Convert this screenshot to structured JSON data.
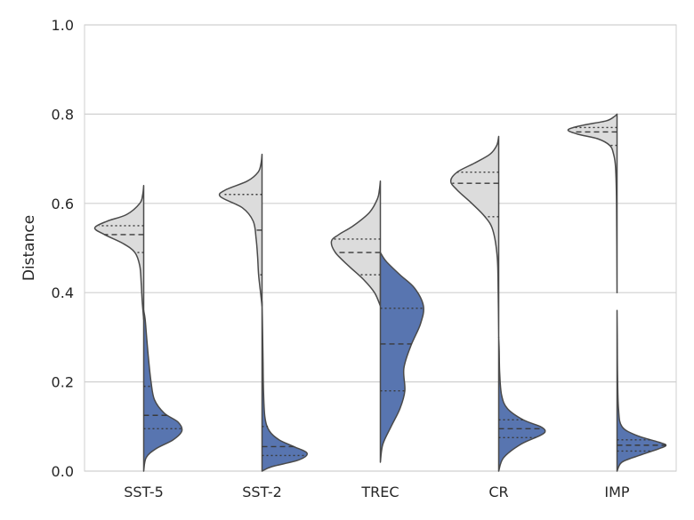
{
  "chart_data": {
    "type": "split-violin",
    "ylabel": "Distance",
    "ylim": [
      0.0,
      1.0
    ],
    "yticks": [
      "0.0",
      "0.2",
      "0.4",
      "0.6",
      "0.8",
      "1.0"
    ],
    "grid": "horizontal",
    "categories": [
      "SST-5",
      "SST-2",
      "TREC",
      "CR",
      "IMP"
    ],
    "colors": {
      "left": "#dcdcdc",
      "right": "#5875b0",
      "outline": "#4a4a4a",
      "grid": "#d0d0d0"
    },
    "series": [
      {
        "side": "left",
        "violins": [
          {
            "category": "SST-5",
            "min": 0.34,
            "max": 0.64,
            "q1": 0.49,
            "median": 0.53,
            "q3": 0.55,
            "shape": [
              [
                0.34,
                0.0
              ],
              [
                0.38,
                0.03
              ],
              [
                0.42,
                0.05
              ],
              [
                0.46,
                0.08
              ],
              [
                0.49,
                0.18
              ],
              [
                0.51,
                0.42
              ],
              [
                0.53,
                0.8
              ],
              [
                0.545,
                1.0
              ],
              [
                0.56,
                0.75
              ],
              [
                0.575,
                0.35
              ],
              [
                0.6,
                0.08
              ],
              [
                0.62,
                0.02
              ],
              [
                0.64,
                0.0
              ]
            ]
          },
          {
            "category": "SST-2",
            "min": 0.37,
            "max": 0.71,
            "q1": 0.44,
            "median": 0.54,
            "q3": 0.62,
            "shape": [
              [
                0.37,
                0.0
              ],
              [
                0.4,
                0.03
              ],
              [
                0.44,
                0.07
              ],
              [
                0.48,
                0.09
              ],
              [
                0.52,
                0.12
              ],
              [
                0.56,
                0.18
              ],
              [
                0.59,
                0.4
              ],
              [
                0.615,
                0.85
              ],
              [
                0.63,
                0.75
              ],
              [
                0.65,
                0.3
              ],
              [
                0.67,
                0.08
              ],
              [
                0.69,
                0.02
              ],
              [
                0.71,
                0.0
              ]
            ]
          },
          {
            "category": "TREC",
            "min": 0.37,
            "max": 0.65,
            "q1": 0.44,
            "median": 0.49,
            "q3": 0.52,
            "shape": [
              [
                0.37,
                0.0
              ],
              [
                0.4,
                0.12
              ],
              [
                0.43,
                0.35
              ],
              [
                0.46,
                0.65
              ],
              [
                0.49,
                0.92
              ],
              [
                0.515,
                1.0
              ],
              [
                0.53,
                0.85
              ],
              [
                0.55,
                0.55
              ],
              [
                0.58,
                0.22
              ],
              [
                0.61,
                0.06
              ],
              [
                0.63,
                0.02
              ],
              [
                0.65,
                0.0
              ]
            ]
          },
          {
            "category": "CR",
            "min": 0.3,
            "max": 0.75,
            "q1": 0.57,
            "median": 0.645,
            "q3": 0.67,
            "shape": [
              [
                0.3,
                0.0
              ],
              [
                0.4,
                0.01
              ],
              [
                0.48,
                0.03
              ],
              [
                0.54,
                0.12
              ],
              [
                0.57,
                0.28
              ],
              [
                0.6,
                0.55
              ],
              [
                0.63,
                0.85
              ],
              [
                0.65,
                0.98
              ],
              [
                0.67,
                0.85
              ],
              [
                0.69,
                0.5
              ],
              [
                0.71,
                0.18
              ],
              [
                0.73,
                0.04
              ],
              [
                0.75,
                0.0
              ]
            ]
          },
          {
            "category": "IMP",
            "min": 0.4,
            "max": 0.8,
            "q1": 0.73,
            "median": 0.76,
            "q3": 0.77,
            "shape": [
              [
                0.4,
                0.0
              ],
              [
                0.6,
                0.01
              ],
              [
                0.68,
                0.03
              ],
              [
                0.71,
                0.07
              ],
              [
                0.73,
                0.15
              ],
              [
                0.745,
                0.4
              ],
              [
                0.755,
                0.8
              ],
              [
                0.765,
                1.0
              ],
              [
                0.775,
                0.7
              ],
              [
                0.785,
                0.22
              ],
              [
                0.795,
                0.05
              ],
              [
                0.8,
                0.0
              ]
            ]
          }
        ]
      },
      {
        "side": "right",
        "violins": [
          {
            "category": "SST-5",
            "min": 0.0,
            "max": 0.36,
            "q1": 0.095,
            "median": 0.125,
            "q3": 0.19,
            "shape": [
              [
                0.0,
                0.0
              ],
              [
                0.03,
                0.05
              ],
              [
                0.05,
                0.25
              ],
              [
                0.07,
                0.6
              ],
              [
                0.09,
                0.78
              ],
              [
                0.11,
                0.7
              ],
              [
                0.13,
                0.42
              ],
              [
                0.16,
                0.22
              ],
              [
                0.2,
                0.15
              ],
              [
                0.25,
                0.1
              ],
              [
                0.3,
                0.06
              ],
              [
                0.34,
                0.03
              ],
              [
                0.36,
                0.0
              ]
            ]
          },
          {
            "category": "SST-2",
            "min": 0.0,
            "max": 0.38,
            "q1": 0.035,
            "median": 0.055,
            "q3": 0.1,
            "shape": [
              [
                0.0,
                0.0
              ],
              [
                0.01,
                0.2
              ],
              [
                0.025,
                0.75
              ],
              [
                0.04,
                0.92
              ],
              [
                0.055,
                0.65
              ],
              [
                0.07,
                0.35
              ],
              [
                0.09,
                0.15
              ],
              [
                0.12,
                0.06
              ],
              [
                0.18,
                0.03
              ],
              [
                0.25,
                0.02
              ],
              [
                0.32,
                0.01
              ],
              [
                0.38,
                0.0
              ]
            ]
          },
          {
            "category": "TREC",
            "min": 0.02,
            "max": 0.49,
            "q1": 0.18,
            "median": 0.285,
            "q3": 0.365,
            "shape": [
              [
                0.02,
                0.0
              ],
              [
                0.06,
                0.05
              ],
              [
                0.1,
                0.22
              ],
              [
                0.14,
                0.4
              ],
              [
                0.18,
                0.5
              ],
              [
                0.23,
                0.48
              ],
              [
                0.28,
                0.62
              ],
              [
                0.33,
                0.82
              ],
              [
                0.37,
                0.88
              ],
              [
                0.41,
                0.7
              ],
              [
                0.44,
                0.4
              ],
              [
                0.47,
                0.12
              ],
              [
                0.49,
                0.0
              ]
            ]
          },
          {
            "category": "CR",
            "min": 0.0,
            "max": 0.3,
            "q1": 0.075,
            "median": 0.095,
            "q3": 0.115,
            "shape": [
              [
                0.0,
                0.0
              ],
              [
                0.03,
                0.1
              ],
              [
                0.06,
                0.45
              ],
              [
                0.08,
                0.85
              ],
              [
                0.09,
                0.95
              ],
              [
                0.1,
                0.85
              ],
              [
                0.115,
                0.5
              ],
              [
                0.14,
                0.18
              ],
              [
                0.17,
                0.06
              ],
              [
                0.22,
                0.02
              ],
              [
                0.27,
                0.01
              ],
              [
                0.3,
                0.0
              ]
            ]
          },
          {
            "category": "IMP",
            "min": 0.0,
            "max": 0.36,
            "q1": 0.045,
            "median": 0.058,
            "q3": 0.07,
            "shape": [
              [
                0.0,
                0.0
              ],
              [
                0.02,
                0.1
              ],
              [
                0.035,
                0.45
              ],
              [
                0.05,
                0.85
              ],
              [
                0.058,
                1.0
              ],
              [
                0.065,
                0.85
              ],
              [
                0.08,
                0.4
              ],
              [
                0.1,
                0.1
              ],
              [
                0.14,
                0.03
              ],
              [
                0.22,
                0.01
              ],
              [
                0.3,
                0.005
              ],
              [
                0.36,
                0.0
              ]
            ]
          }
        ]
      }
    ]
  }
}
